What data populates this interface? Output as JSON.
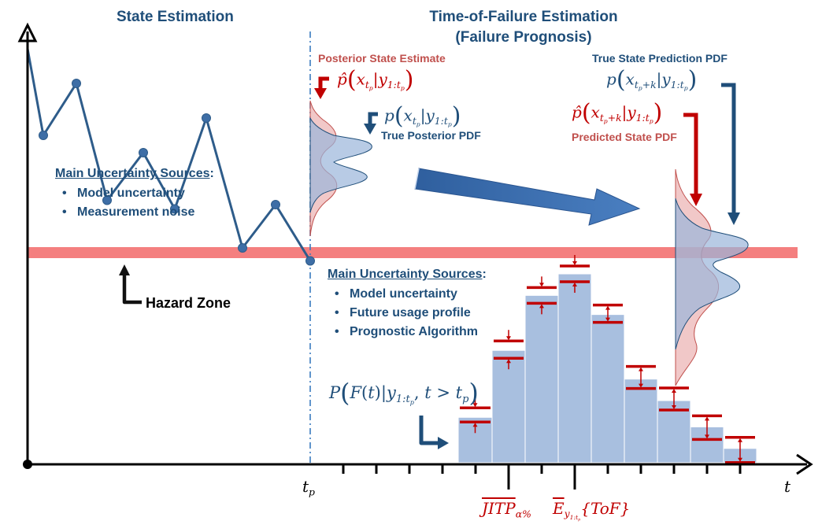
{
  "headers": {
    "state_estimation": "State Estimation",
    "tof_line1": "Time-of-Failure Estimation",
    "tof_line2": "(Failure Prognosis)"
  },
  "posterior": {
    "label": "Posterior State Estimate",
    "formula_func": "p̂",
    "formula_x": "x",
    "formula_sub": "t",
    "formula_subsub": "p",
    "formula_y": "y",
    "formula_ysub": "1:t",
    "formula_ysubsub": "p"
  },
  "true_posterior": {
    "label": "True Posterior PDF",
    "formula_func": "p"
  },
  "true_prediction": {
    "label": "True State Prediction PDF",
    "formula_func": "p",
    "formula_xsub": "t",
    "formula_xsubsub": "p",
    "formula_xsubtail": "+k"
  },
  "predicted": {
    "label": "Predicted State PDF",
    "formula_func": "p̂"
  },
  "uncertainty_left": {
    "title": "Main Uncertainty Sources",
    "colon": ":",
    "items": [
      "Model uncertainty",
      "Measurement noise"
    ]
  },
  "uncertainty_right": {
    "title": "Main Uncertainty Sources",
    "colon": ":",
    "items": [
      "Model uncertainty",
      "Future usage profile",
      "Prognostic Algorithm"
    ]
  },
  "hazard_zone": "Hazard Zone",
  "tof_pdf_formula": {
    "P": "P",
    "F": "F",
    "t": "t",
    "y": "y",
    "ysub": "1:t",
    "ysubsub": "p",
    "cond": "t > t",
    "condsub": "p"
  },
  "axis": {
    "tp_main": "t",
    "tp_sub": "p",
    "t": "t"
  },
  "bottom_labels": {
    "jitp_main": "JITP",
    "jitp_sub": "α%",
    "e_main": "E",
    "e_sub": "y",
    "e_subsub": "1:t",
    "e_subsubsub": "p",
    "tof": "{ToF}"
  },
  "colors": {
    "dark_blue": "#1f4e79",
    "mid_blue": "#2e5c8a",
    "red": "#c00000",
    "light_red": "#c0504d",
    "hazard_band": "#f47f7f",
    "hist_fill": "#a8bfdf"
  },
  "state_trajectory": [
    [
      0,
      0.96
    ],
    [
      1,
      0.76
    ],
    [
      2,
      0.88
    ],
    [
      3,
      0.61
    ],
    [
      4,
      0.72
    ],
    [
      5,
      0.59
    ],
    [
      6,
      0.8
    ],
    [
      7,
      0.5
    ],
    [
      8,
      0.6
    ],
    [
      9,
      0.47
    ]
  ],
  "histogram": [
    0.19,
    0.47,
    0.7,
    0.79,
    0.62,
    0.35,
    0.26,
    0.15,
    0.06
  ]
}
